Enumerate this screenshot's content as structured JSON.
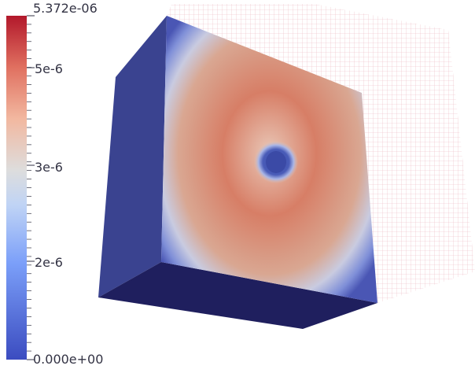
{
  "colorbar": {
    "max_label": "5.372e-06",
    "min_label": "0.000e+00",
    "ticks": [
      {
        "label": "5e-6",
        "value": 5e-06
      },
      {
        "label": "3e-6",
        "value": 3e-06
      },
      {
        "label": "2e-6",
        "value": 2e-06
      }
    ],
    "range": [
      0,
      5.372e-06
    ],
    "colors": {
      "high": "#b2182b",
      "mid": "#dddddd",
      "low": "#3b4cc0",
      "cube_side": "#3a4390",
      "cube_bottom": "#1f1f5e",
      "wireframe": "#e0a0a8"
    }
  }
}
